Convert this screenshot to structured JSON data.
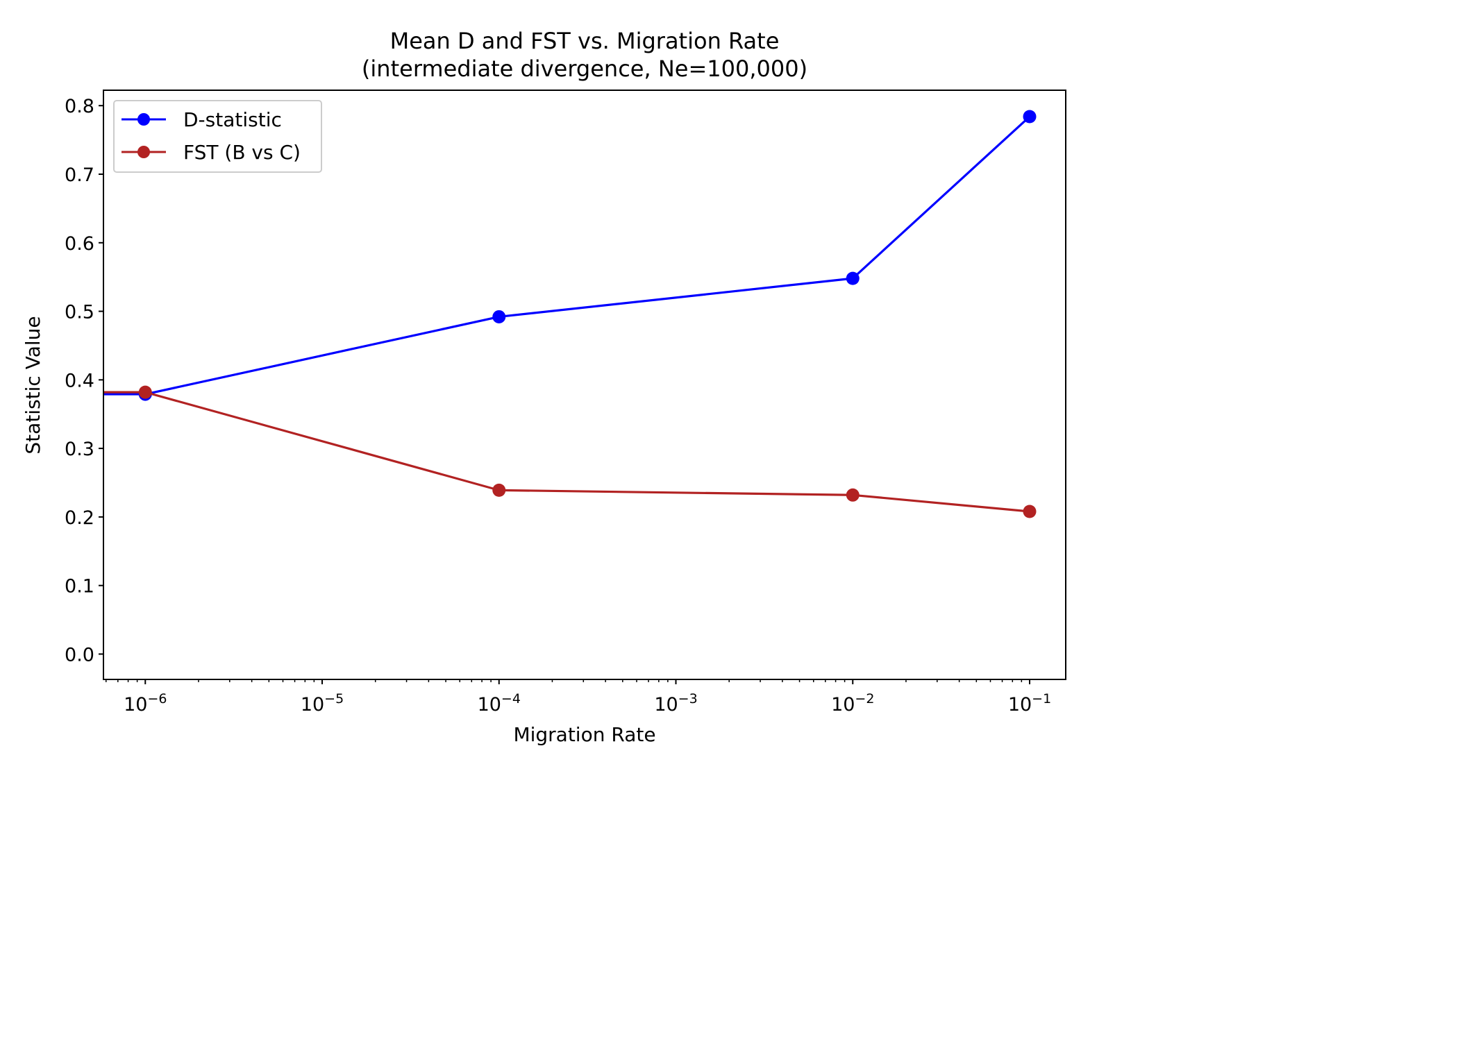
{
  "chart_data": {
    "type": "line",
    "title": "Mean D and FST vs. Migration Rate",
    "subtitle": "(intermediate divergence, Ne=100,000)",
    "xlabel": "Migration Rate",
    "ylabel": "Statistic Value",
    "xscale": "log",
    "xlim": [
      5.8e-07,
      0.16
    ],
    "ylim": [
      -0.037,
      0.8225
    ],
    "grid": false,
    "legend_position": "top-left",
    "x": [
      1e-06,
      0.0001,
      0.01,
      0.1
    ],
    "series": [
      {
        "name": "D-statistic",
        "color": "#0000ff",
        "values": [
          0.379,
          0.492,
          0.548,
          0.784
        ]
      },
      {
        "name": "FST (B vs C)",
        "color": "#b22222",
        "values": [
          0.382,
          0.239,
          0.232,
          0.208
        ]
      }
    ],
    "x_line_start": 5.8e-07,
    "xticks": [
      {
        "value": 1e-06,
        "base": "10",
        "exp": "−6"
      },
      {
        "value": 1e-05,
        "base": "10",
        "exp": "−5"
      },
      {
        "value": 0.0001,
        "base": "10",
        "exp": "−4"
      },
      {
        "value": 0.001,
        "base": "10",
        "exp": "−3"
      },
      {
        "value": 0.01,
        "base": "10",
        "exp": "−2"
      },
      {
        "value": 0.1,
        "base": "10",
        "exp": "−1"
      }
    ],
    "yticks": [
      {
        "value": 0.0,
        "label": "0.0"
      },
      {
        "value": 0.1,
        "label": "0.1"
      },
      {
        "value": 0.2,
        "label": "0.2"
      },
      {
        "value": 0.3,
        "label": "0.3"
      },
      {
        "value": 0.4,
        "label": "0.4"
      },
      {
        "value": 0.5,
        "label": "0.5"
      },
      {
        "value": 0.6,
        "label": "0.6"
      },
      {
        "value": 0.7,
        "label": "0.7"
      },
      {
        "value": 0.8,
        "label": "0.8"
      }
    ]
  }
}
